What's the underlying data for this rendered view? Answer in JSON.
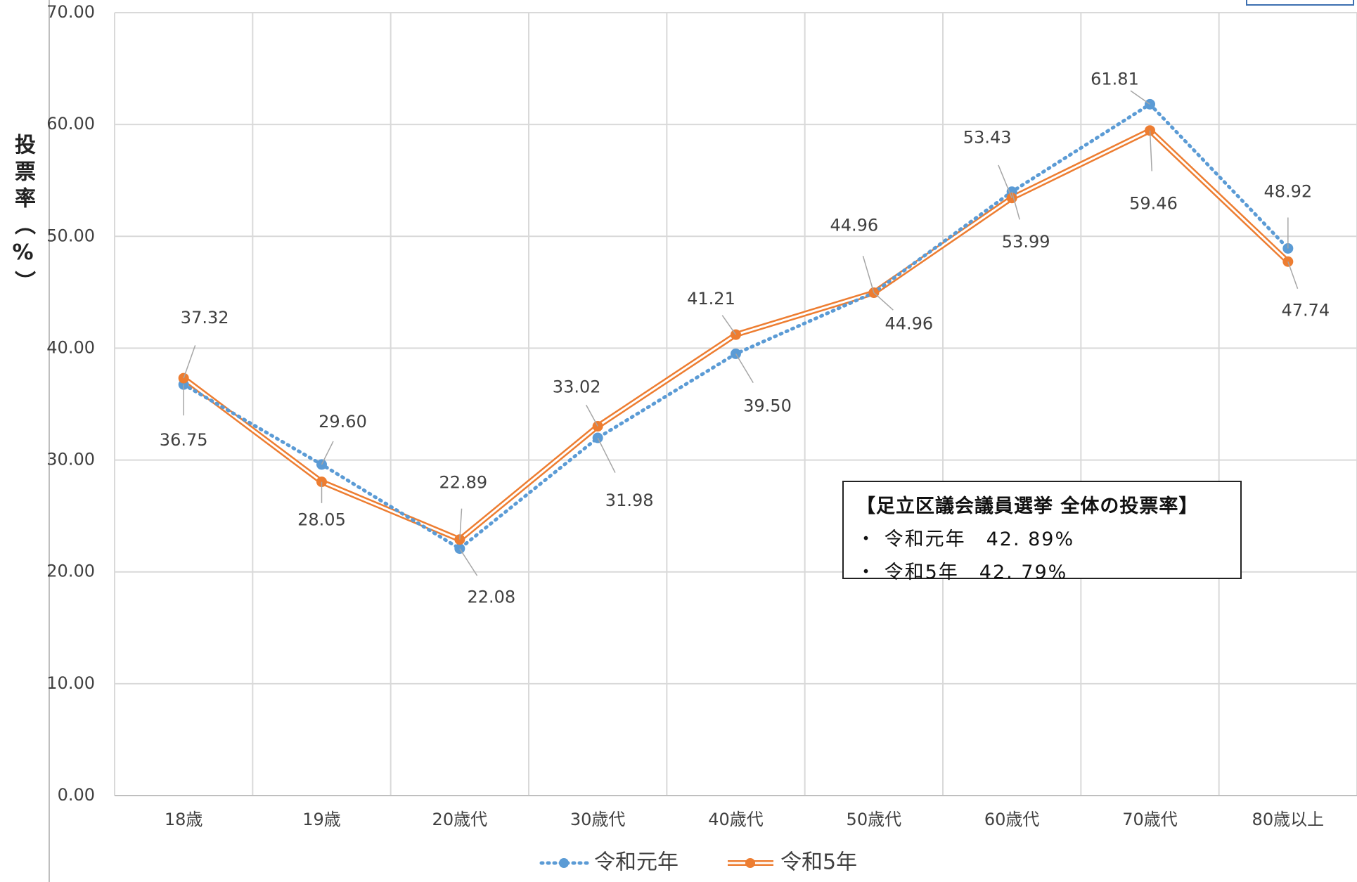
{
  "chart_data": {
    "type": "line",
    "categories": [
      "18歳",
      "19歳",
      "20歳代",
      "30歳代",
      "40歳代",
      "50歳代",
      "60歳代",
      "70歳代",
      "80歳以上"
    ],
    "series": [
      {
        "name": "令和元年",
        "values": [
          36.75,
          29.6,
          22.08,
          31.98,
          39.5,
          44.96,
          53.99,
          61.81,
          48.92
        ],
        "labels": [
          "36.75",
          "29.60",
          "22.08",
          "31.98",
          "39.50",
          "44.96",
          "53.99",
          "61.81",
          "48.92"
        ],
        "color": "#5b9bd5",
        "style": "dotted"
      },
      {
        "name": "令和5年",
        "values": [
          37.32,
          28.05,
          22.89,
          33.02,
          41.21,
          44.96,
          53.43,
          59.46,
          47.74
        ],
        "labels": [
          "37.32",
          "28.05",
          "22.89",
          "33.02",
          "41.21",
          "44.96",
          "53.43",
          "59.46",
          "47.74"
        ],
        "color": "#ed7d31",
        "style": "double"
      }
    ],
    "ylim": [
      0,
      70
    ],
    "yticks": [
      "0.00",
      "10.00",
      "20.00",
      "30.00",
      "40.00",
      "50.00",
      "60.00",
      "70.00"
    ],
    "ylabel": "投票率（%）",
    "xlabel": "",
    "grid": true,
    "legend_position": "bottom"
  },
  "info_box": {
    "title": "【足立区議会議員選挙 全体の投票率】",
    "lines": [
      "・ 令和元年　42. 89%",
      "・ 令和5年　42. 79%"
    ]
  }
}
